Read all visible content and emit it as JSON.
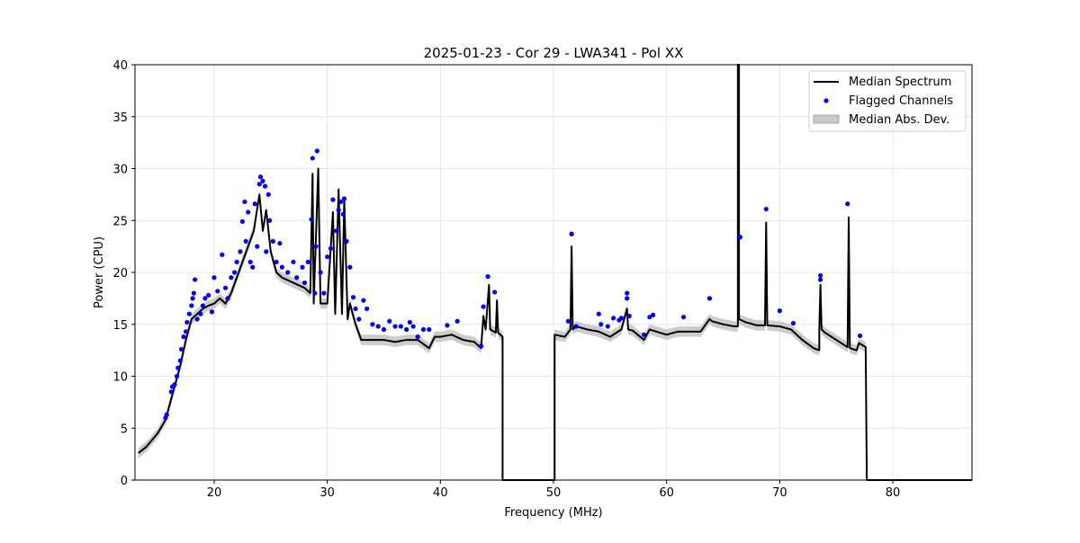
{
  "chart_data": {
    "type": "line",
    "title": "2025-01-23 - Cor 29 - LWA341 - Pol XX",
    "xlabel": "Frequency (MHz)",
    "ylabel": "Power (CPU)",
    "xlim": [
      13,
      87
    ],
    "ylim": [
      0,
      40
    ],
    "xticks": [
      20,
      30,
      40,
      50,
      60,
      70,
      80
    ],
    "yticks": [
      0,
      5,
      10,
      15,
      20,
      25,
      30,
      35,
      40
    ],
    "grid": true,
    "legend_position": "top-right",
    "legend": [
      "Median Spectrum",
      "Flagged Channels",
      "Median Abs. Dev."
    ],
    "colors": {
      "spectrum": "#000000",
      "flagged": "#0000ff",
      "mad": "#bfbfbf"
    },
    "mad_halfwidth": 0.5,
    "series": [
      {
        "name": "Median Spectrum",
        "points": [
          [
            13.3,
            2.6
          ],
          [
            14,
            3.2
          ],
          [
            15,
            4.5
          ],
          [
            15.7,
            5.8
          ],
          [
            16,
            7
          ],
          [
            16.5,
            9
          ],
          [
            17,
            11
          ],
          [
            17.5,
            13.5
          ],
          [
            18,
            15.5
          ],
          [
            18.5,
            16
          ],
          [
            19,
            16.5
          ],
          [
            19.5,
            16.8
          ],
          [
            20,
            17
          ],
          [
            20.5,
            17.5
          ],
          [
            21,
            17
          ],
          [
            21.5,
            18
          ],
          [
            22,
            19.5
          ],
          [
            22.5,
            21
          ],
          [
            23,
            22.5
          ],
          [
            23.5,
            24
          ],
          [
            24,
            27.5
          ],
          [
            24.3,
            24
          ],
          [
            24.6,
            26
          ],
          [
            25,
            22
          ],
          [
            25.5,
            20
          ],
          [
            26,
            19.5
          ],
          [
            27,
            19
          ],
          [
            28,
            18.5
          ],
          [
            28.5,
            18
          ],
          [
            28.7,
            29.5
          ],
          [
            28.8,
            17
          ],
          [
            29.2,
            30
          ],
          [
            29.4,
            17
          ],
          [
            30,
            17
          ],
          [
            30.5,
            25.8
          ],
          [
            30.7,
            16
          ],
          [
            31,
            28
          ],
          [
            31.3,
            16
          ],
          [
            31.5,
            27
          ],
          [
            31.8,
            15.5
          ],
          [
            32,
            17
          ],
          [
            32.5,
            15
          ],
          [
            33,
            13.5
          ],
          [
            34,
            13.5
          ],
          [
            35,
            13.5
          ],
          [
            36,
            13.3
          ],
          [
            37,
            13.5
          ],
          [
            38,
            13.5
          ],
          [
            39,
            12.7
          ],
          [
            39.5,
            13.8
          ],
          [
            40,
            13.8
          ],
          [
            41,
            14
          ],
          [
            42,
            13.5
          ],
          [
            43,
            13.3
          ],
          [
            43.6,
            12.7
          ],
          [
            43.8,
            15.8
          ],
          [
            44,
            14.5
          ],
          [
            44.3,
            18.8
          ],
          [
            44.4,
            14.5
          ],
          [
            44.9,
            14.2
          ],
          [
            45,
            17.3
          ],
          [
            45.1,
            14.2
          ],
          [
            45.5,
            13.8
          ],
          [
            45.5,
            0
          ],
          [
            50.1,
            0
          ],
          [
            50.1,
            14
          ],
          [
            51,
            13.8
          ],
          [
            51.5,
            14.5
          ],
          [
            51.6,
            22.5
          ],
          [
            51.7,
            14.5
          ],
          [
            52,
            14.8
          ],
          [
            53,
            14.5
          ],
          [
            54,
            14.3
          ],
          [
            55,
            13.8
          ],
          [
            56,
            14.5
          ],
          [
            56.5,
            16.5
          ],
          [
            56.6,
            14.5
          ],
          [
            57,
            14.4
          ],
          [
            58,
            13.5
          ],
          [
            58.5,
            14.5
          ],
          [
            60,
            14
          ],
          [
            61,
            14.3
          ],
          [
            62,
            14.3
          ],
          [
            63,
            14.3
          ],
          [
            63.8,
            15.5
          ],
          [
            64,
            15.3
          ],
          [
            65,
            15
          ],
          [
            66,
            14.8
          ],
          [
            66.3,
            14.8
          ],
          [
            66.3,
            40
          ],
          [
            66.4,
            40
          ],
          [
            66.4,
            15.5
          ],
          [
            67,
            15.2
          ],
          [
            68,
            14.9
          ],
          [
            68.7,
            14.9
          ],
          [
            68.8,
            24.8
          ],
          [
            68.9,
            14.9
          ],
          [
            70,
            14.8
          ],
          [
            71,
            14.5
          ],
          [
            72,
            13.5
          ],
          [
            73,
            12.7
          ],
          [
            73.5,
            12.5
          ],
          [
            73.5,
            14.5
          ],
          [
            73.6,
            18.8
          ],
          [
            73.7,
            14.5
          ],
          [
            74,
            14.2
          ],
          [
            75,
            13.5
          ],
          [
            76,
            12.8
          ],
          [
            76.1,
            25.3
          ],
          [
            76.2,
            12.7
          ],
          [
            76.8,
            12.5
          ],
          [
            77,
            13.2
          ],
          [
            77.6,
            12.8
          ],
          [
            77.7,
            0
          ],
          [
            87,
            0
          ]
        ]
      },
      {
        "name": "Flagged Channels",
        "points": [
          [
            15.7,
            6
          ],
          [
            15.8,
            6.3
          ],
          [
            16.2,
            8.5
          ],
          [
            16.3,
            9
          ],
          [
            16.5,
            9.2
          ],
          [
            16.7,
            10
          ],
          [
            16.8,
            10.8
          ],
          [
            17,
            11.5
          ],
          [
            17.1,
            12.6
          ],
          [
            17.3,
            13.8
          ],
          [
            17.5,
            14.3
          ],
          [
            17.6,
            15.2
          ],
          [
            17.8,
            16
          ],
          [
            18,
            16.8
          ],
          [
            18.1,
            17.5
          ],
          [
            18.2,
            18
          ],
          [
            18.3,
            19.3
          ],
          [
            18.5,
            15.5
          ],
          [
            18.8,
            16
          ],
          [
            19,
            16.8
          ],
          [
            19.2,
            17.5
          ],
          [
            19.5,
            17.8
          ],
          [
            19.8,
            16.2
          ],
          [
            20,
            19.5
          ],
          [
            20.3,
            18.2
          ],
          [
            20.7,
            21.7
          ],
          [
            21,
            18.5
          ],
          [
            21.2,
            17.5
          ],
          [
            21.5,
            19.5
          ],
          [
            21.8,
            20
          ],
          [
            22,
            21
          ],
          [
            22.3,
            22
          ],
          [
            22.5,
            24.9
          ],
          [
            22.7,
            26.8
          ],
          [
            22.8,
            23
          ],
          [
            23,
            25.8
          ],
          [
            23.2,
            21
          ],
          [
            23.4,
            20.5
          ],
          [
            23.6,
            26.6
          ],
          [
            23.8,
            22.5
          ],
          [
            24,
            28.5
          ],
          [
            24.1,
            29.2
          ],
          [
            24.3,
            28.8
          ],
          [
            24.5,
            28.3
          ],
          [
            24.6,
            22
          ],
          [
            24.8,
            27.5
          ],
          [
            24.9,
            25
          ],
          [
            25.2,
            23
          ],
          [
            25.5,
            21
          ],
          [
            25.8,
            22.8
          ],
          [
            26,
            20.5
          ],
          [
            26.5,
            20
          ],
          [
            27,
            21
          ],
          [
            27.3,
            19.5
          ],
          [
            27.8,
            20.5
          ],
          [
            28,
            19
          ],
          [
            28.3,
            21
          ],
          [
            28.6,
            25.1
          ],
          [
            28.7,
            31
          ],
          [
            28.9,
            18
          ],
          [
            29.1,
            31.7
          ],
          [
            29,
            22.5
          ],
          [
            29.4,
            20
          ],
          [
            29.7,
            18
          ],
          [
            30,
            21.5
          ],
          [
            30.3,
            22.3
          ],
          [
            30.5,
            27
          ],
          [
            30.8,
            24
          ],
          [
            31,
            26
          ],
          [
            31.2,
            26.8
          ],
          [
            31.4,
            25.6
          ],
          [
            31.5,
            27.1
          ],
          [
            31.7,
            23
          ],
          [
            32,
            20.5
          ],
          [
            32.3,
            17.6
          ],
          [
            32.5,
            16.5
          ],
          [
            32.8,
            15.5
          ],
          [
            33.2,
            17.3
          ],
          [
            33.5,
            16.5
          ],
          [
            34,
            15
          ],
          [
            34.5,
            14.8
          ],
          [
            35,
            14.5
          ],
          [
            35.5,
            15.3
          ],
          [
            36,
            14.8
          ],
          [
            36.5,
            14.8
          ],
          [
            37,
            14.5
          ],
          [
            37.3,
            15.2
          ],
          [
            37.6,
            14.8
          ],
          [
            38,
            13.8
          ],
          [
            38.5,
            14.5
          ],
          [
            39,
            14.5
          ],
          [
            40.6,
            14.9
          ],
          [
            41.5,
            15.3
          ],
          [
            43.6,
            12.9
          ],
          [
            43.8,
            16.7
          ],
          [
            44.2,
            19.6
          ],
          [
            44.8,
            18.1
          ],
          [
            51.3,
            15.3
          ],
          [
            51.6,
            23.7
          ],
          [
            52,
            14.8
          ],
          [
            54,
            16
          ],
          [
            54.2,
            15
          ],
          [
            54.8,
            14.8
          ],
          [
            55.3,
            15.6
          ],
          [
            55.8,
            15.4
          ],
          [
            56,
            15.6
          ],
          [
            56.5,
            17.5
          ],
          [
            56.5,
            18
          ],
          [
            56.7,
            15.8
          ],
          [
            58,
            14
          ],
          [
            58.5,
            15.7
          ],
          [
            58.8,
            15.9
          ],
          [
            61.5,
            15.7
          ],
          [
            63.8,
            17.5
          ],
          [
            66.5,
            23.4
          ],
          [
            68.8,
            26.1
          ],
          [
            70,
            16.3
          ],
          [
            71.2,
            15.1
          ],
          [
            73.6,
            19.3
          ],
          [
            73.6,
            19.7
          ],
          [
            76,
            26.6
          ],
          [
            77.1,
            13.9
          ]
        ]
      }
    ]
  }
}
